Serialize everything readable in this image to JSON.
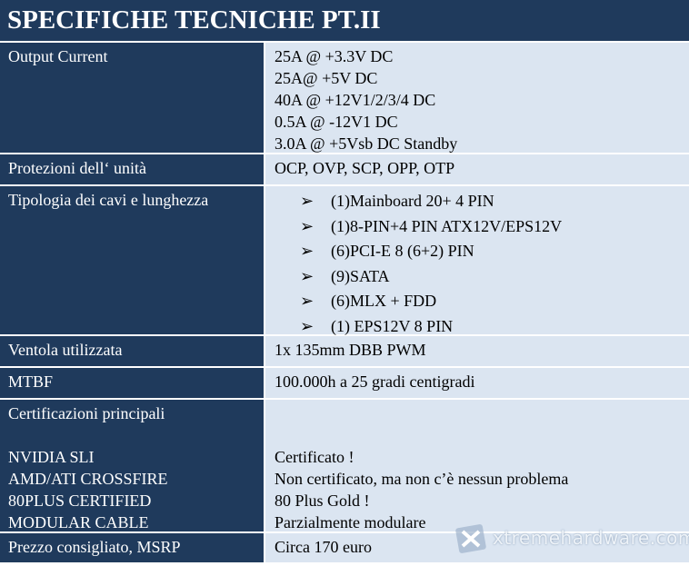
{
  "title": "SPECIFICHE TECNICHE PT.II",
  "rows": [
    {
      "label": "Output Current",
      "lines": [
        "25A @ +3.3V DC",
        "25A@ +5V DC",
        "40A @ +12V1/2/3/4 DC",
        "0.5A @ -12V1 DC",
        "3.0A @ +5Vsb DC Standby"
      ]
    },
    {
      "label": "Protezioni dell‘ unità",
      "lines": [
        "OCP, OVP, SCP, OPP, OTP"
      ]
    },
    {
      "label": "Tipologia dei cavi e lunghezza",
      "bullets": [
        "(1)Mainboard 20+ 4 PIN",
        "(1)8-PIN+4 PIN ATX12V/EPS12V",
        "(6)PCI-E 8 (6+2) PIN",
        "(9)SATA",
        "(6)MLX + FDD",
        "(1) EPS12V 8 PIN"
      ]
    },
    {
      "label": "Ventola utilizzata",
      "lines": [
        "1x 135mm DBB PWM"
      ]
    },
    {
      "label": "MTBF",
      "lines": [
        "100.000h a 25 gradi centigradi"
      ]
    },
    {
      "label": "Certificazioni principali",
      "items": [
        {
          "label": "NVIDIA SLI",
          "value": "Certificato !"
        },
        {
          "label": "AMD/ATI CROSSFIRE",
          "value": "Non certificato, ma non c’è nessun problema"
        },
        {
          "label": "80PLUS CERTIFIED",
          "value": "80 Plus Gold !"
        },
        {
          "label": "MODULAR CABLE",
          "value": "Parzialmente modulare"
        }
      ]
    },
    {
      "label": "Prezzo consigliato, MSRP",
      "lines": [
        "Circa 170 euro"
      ]
    }
  ],
  "watermark": "xtremehardware.com"
}
